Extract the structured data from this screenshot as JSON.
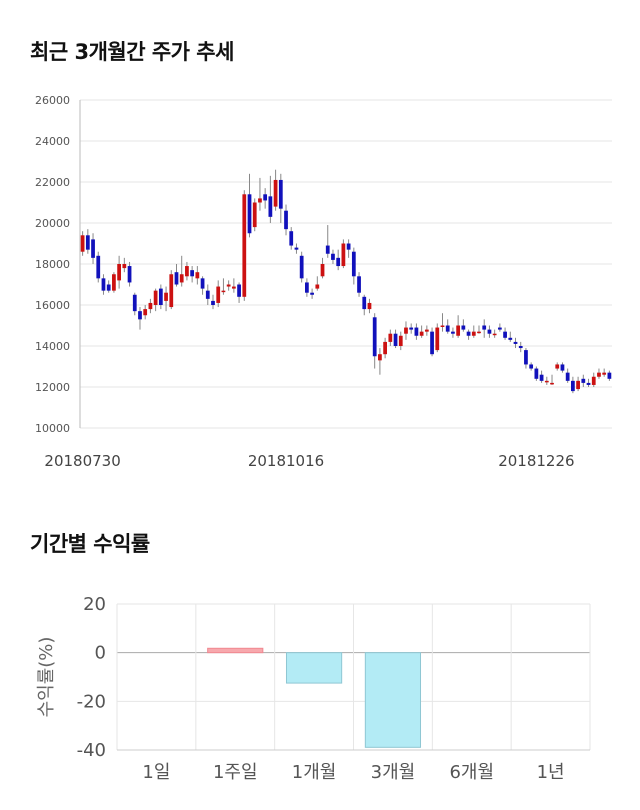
{
  "sections": {
    "price_title": "최근 3개월간 주가 추세",
    "returns_title": "기간별 수익률"
  },
  "colors": {
    "up": "#cc1111",
    "down": "#1111bb",
    "wick": "#888888",
    "positive_bar": "#f7a8ad",
    "negative_bar": "#b3ebf5",
    "grid": "#e6e6e6"
  },
  "chart_data": [
    {
      "type": "candlestick",
      "title": "최근 3개월간 주가 추세",
      "ylim": [
        10000,
        26000
      ],
      "yticks": [
        10000,
        12000,
        14000,
        16000,
        18000,
        20000,
        22000,
        24000,
        26000
      ],
      "xtick_labels": [
        {
          "index": 0,
          "label": "20180730"
        },
        {
          "index": 39,
          "label": "20181016"
        },
        {
          "index": 87,
          "label": "20181226"
        }
      ],
      "grid": true,
      "candles": [
        [
          18600,
          19400,
          19600,
          18400
        ],
        [
          19400,
          18700,
          19700,
          18500
        ],
        [
          19200,
          18300,
          19500,
          18000
        ],
        [
          18400,
          17300,
          18600,
          17100
        ],
        [
          17300,
          16700,
          17500,
          16500
        ],
        [
          17000,
          16700,
          17200,
          16600
        ],
        [
          16700,
          17500,
          17600,
          16600
        ],
        [
          17200,
          18000,
          18400,
          16800
        ],
        [
          17800,
          18000,
          18300,
          17600
        ],
        [
          17900,
          17100,
          18100,
          16900
        ],
        [
          16500,
          15700,
          16600,
          15500
        ],
        [
          15700,
          15300,
          15900,
          14800
        ],
        [
          15500,
          15800,
          16000,
          15300
        ],
        [
          15800,
          16100,
          16300,
          15600
        ],
        [
          16000,
          16700,
          16800,
          15700
        ],
        [
          16800,
          16000,
          17000,
          15800
        ],
        [
          16200,
          16600,
          16900,
          15700
        ],
        [
          15900,
          17500,
          17700,
          15800
        ],
        [
          17600,
          17000,
          18000,
          16900
        ],
        [
          17100,
          17500,
          18400,
          16900
        ],
        [
          17400,
          17900,
          18100,
          17200
        ],
        [
          17700,
          17400,
          17900,
          17100
        ],
        [
          17300,
          17600,
          17900,
          17000
        ],
        [
          17300,
          16800,
          17400,
          16500
        ],
        [
          16700,
          16300,
          17000,
          16000
        ],
        [
          16200,
          16000,
          16500,
          15800
        ],
        [
          16100,
          16900,
          17200,
          15900
        ],
        [
          16700,
          16700,
          17300,
          16500
        ],
        [
          16900,
          17000,
          17200,
          16700
        ],
        [
          16800,
          16900,
          17300,
          16600
        ],
        [
          17000,
          16400,
          17100,
          16100
        ],
        [
          16400,
          21400,
          21600,
          16200
        ],
        [
          21400,
          19500,
          22400,
          19300
        ],
        [
          19800,
          21000,
          21200,
          19600
        ],
        [
          21000,
          21200,
          22200,
          20600
        ],
        [
          21400,
          21100,
          21700,
          20700
        ],
        [
          21300,
          20300,
          22300,
          20000
        ],
        [
          20800,
          22100,
          22600,
          20600
        ],
        [
          22100,
          20700,
          22400,
          20000
        ],
        [
          20600,
          19700,
          20900,
          19400
        ],
        [
          19600,
          18900,
          19800,
          18700
        ],
        [
          18800,
          18700,
          19000,
          18500
        ],
        [
          18400,
          17300,
          18600,
          17100
        ],
        [
          17100,
          16600,
          17300,
          16400
        ],
        [
          16600,
          16500,
          16800,
          16300
        ],
        [
          16800,
          17000,
          17400,
          16700
        ],
        [
          17400,
          18000,
          18300,
          17300
        ],
        [
          18900,
          18500,
          19900,
          18300
        ],
        [
          18500,
          18200,
          18700,
          18000
        ],
        [
          18300,
          17900,
          18700,
          17700
        ],
        [
          17900,
          19000,
          19200,
          17800
        ],
        [
          19000,
          18700,
          19200,
          18300
        ],
        [
          18600,
          17400,
          18800,
          17000
        ],
        [
          17400,
          16600,
          17600,
          16400
        ],
        [
          16400,
          15800,
          16500,
          15500
        ],
        [
          15800,
          16100,
          16300,
          15600
        ],
        [
          15400,
          13500,
          15600,
          12900
        ],
        [
          13300,
          13600,
          13900,
          12600
        ],
        [
          13600,
          14200,
          14400,
          13400
        ],
        [
          14200,
          14600,
          14800,
          14000
        ],
        [
          14600,
          14000,
          14800,
          13900
        ],
        [
          14000,
          14500,
          14700,
          13800
        ],
        [
          14600,
          14900,
          15200,
          14300
        ],
        [
          14900,
          14800,
          15100,
          14600
        ],
        [
          14900,
          14500,
          15100,
          14300
        ],
        [
          14500,
          14700,
          15000,
          14400
        ],
        [
          14700,
          14800,
          15000,
          14500
        ],
        [
          14700,
          13600,
          14900,
          13500
        ],
        [
          13800,
          14900,
          15100,
          13700
        ],
        [
          15000,
          15000,
          15600,
          14700
        ],
        [
          15000,
          14700,
          15300,
          14600
        ],
        [
          14700,
          14600,
          14900,
          14400
        ],
        [
          14500,
          15000,
          15500,
          14400
        ],
        [
          15000,
          14800,
          15300,
          14700
        ],
        [
          14700,
          14500,
          14800,
          14300
        ],
        [
          14500,
          14700,
          15000,
          14400
        ],
        [
          14700,
          14700,
          15000,
          14600
        ],
        [
          15000,
          14800,
          15300,
          14400
        ],
        [
          14800,
          14600,
          15000,
          14400
        ],
        [
          14600,
          14600,
          14800,
          14400
        ],
        [
          14900,
          14800,
          15100,
          14700
        ],
        [
          14700,
          14400,
          14900,
          14300
        ],
        [
          14400,
          14300,
          14700,
          14200
        ],
        [
          14200,
          14100,
          14400,
          13900
        ],
        [
          14000,
          13900,
          14200,
          13700
        ],
        [
          13800,
          13100,
          13900,
          12900
        ],
        [
          13100,
          12900,
          13200,
          12800
        ],
        [
          12900,
          12400,
          13000,
          12300
        ],
        [
          12600,
          12300,
          12800,
          12200
        ],
        [
          12300,
          12300,
          12500,
          12100
        ],
        [
          12200,
          12200,
          12600,
          12100
        ],
        [
          12900,
          13100,
          13200,
          12800
        ],
        [
          13100,
          12800,
          13200,
          12700
        ],
        [
          12700,
          12300,
          12900,
          12200
        ],
        [
          12300,
          11800,
          12500,
          11700
        ],
        [
          11900,
          12300,
          12500,
          11800
        ],
        [
          12400,
          12200,
          12600,
          12000
        ],
        [
          12200,
          12100,
          12400,
          12000
        ],
        [
          12100,
          12500,
          12700,
          12000
        ],
        [
          12500,
          12700,
          12900,
          12400
        ],
        [
          12600,
          12700,
          12900,
          12500
        ],
        [
          12700,
          12400,
          12800,
          12300
        ]
      ]
    },
    {
      "type": "bar",
      "title": "기간별 수익률",
      "ylabel": "수익률(%)",
      "ylim": [
        -40,
        20
      ],
      "yticks": [
        20,
        0,
        -20,
        -40
      ],
      "grid": true,
      "categories": [
        "1일",
        "1주일",
        "1개월",
        "3개월",
        "6개월",
        "1년"
      ],
      "values": [
        0,
        1.8,
        -12.5,
        -38.9,
        0,
        0
      ]
    }
  ]
}
